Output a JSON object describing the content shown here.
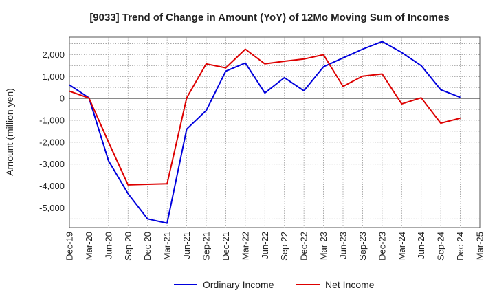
{
  "chart_data": {
    "type": "line",
    "title": "[9033]  Trend of Change in Amount (YoY) of 12Mo Moving Sum of Incomes",
    "xlabel": "",
    "ylabel": "Amount (million yen)",
    "categories": [
      "Dec-19",
      "Mar-20",
      "Jun-20",
      "Sep-20",
      "Dec-20",
      "Mar-21",
      "Jun-21",
      "Sep-21",
      "Dec-21",
      "Mar-22",
      "Jun-22",
      "Sep-22",
      "Dec-22",
      "Mar-23",
      "Jun-23",
      "Sep-23",
      "Dec-23",
      "Mar-24",
      "Jun-24",
      "Sep-24",
      "Dec-24",
      "Mar-25"
    ],
    "yticks": [
      2000,
      1000,
      0,
      -1000,
      -2000,
      -3000,
      -4000,
      -5000
    ],
    "ytick_labels": [
      "2,000",
      "1,000",
      "0",
      "-1,000",
      "-2,000",
      "-3,000",
      "-4,000",
      "-5,000"
    ],
    "ylim": [
      -5900,
      2800
    ],
    "grid": true,
    "legend_position": "bottom",
    "series": [
      {
        "name": "Ordinary Income",
        "color": "#0000dd",
        "values": [
          620,
          30,
          -2850,
          -4350,
          -5500,
          -5700,
          -1400,
          -550,
          1250,
          1620,
          250,
          950,
          350,
          1450,
          1850,
          2250,
          2600,
          2100,
          1500,
          400,
          50,
          null
        ]
      },
      {
        "name": "Net Income",
        "color": "#dd0000",
        "values": [
          330,
          20,
          -2000,
          -3950,
          -3920,
          -3900,
          30,
          1580,
          1400,
          2250,
          1580,
          1700,
          1800,
          2000,
          550,
          1020,
          1120,
          -250,
          30,
          -1130,
          -900,
          null
        ]
      }
    ]
  }
}
